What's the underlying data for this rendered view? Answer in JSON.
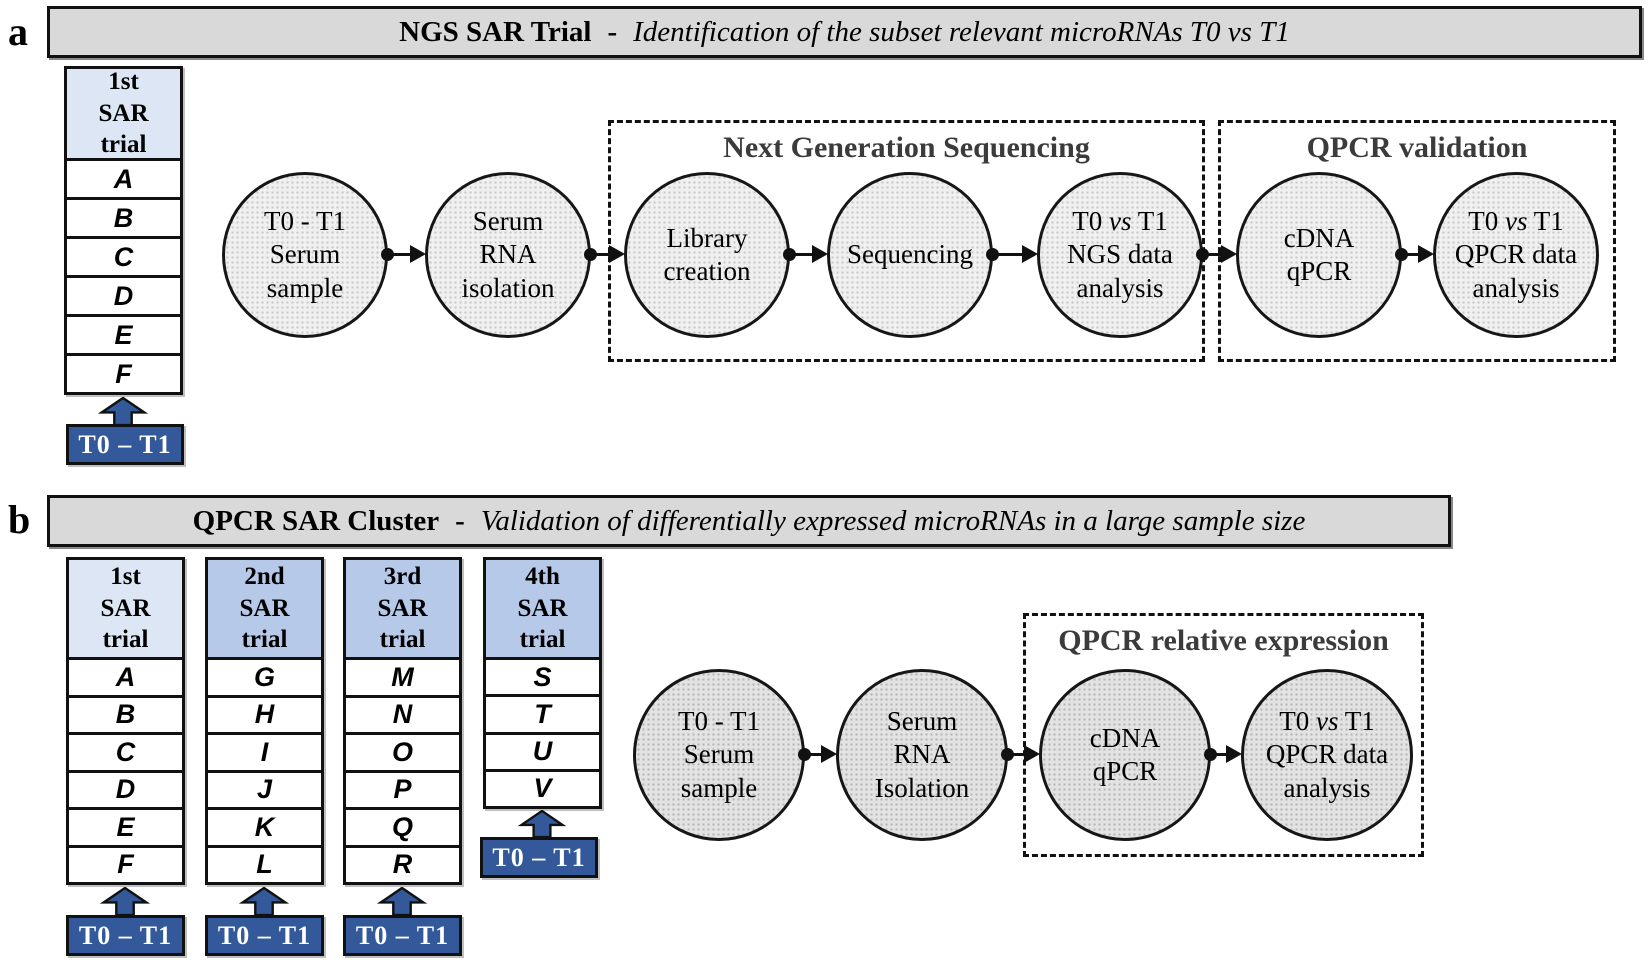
{
  "colors": {
    "bar_fill": "#d9d9d9",
    "trial1_header_fill": "#dce6f4",
    "trial_header_fill": "#b6c9e8",
    "t0t1_blue": "#33599b",
    "group_title_color": "#3b3b3b"
  },
  "panel_a": {
    "label": "a",
    "bar": {
      "title_bold": "NGS SAR Trial",
      "separator": "-",
      "title_italic": "Identification of the subset relevant microRNAs T0 vs T1"
    },
    "trial_column": {
      "header_lines": [
        "1st",
        "SAR",
        "trial"
      ],
      "rows": [
        "A",
        "B",
        "C",
        "D",
        "E",
        "F"
      ],
      "arrow_label": "T0 – T1"
    },
    "flow": [
      {
        "lines": [
          "T0 - T1",
          "Serum",
          "sample"
        ]
      },
      {
        "lines": [
          "Serum",
          "RNA",
          "isolation"
        ]
      },
      {
        "lines": [
          "Library",
          "creation"
        ]
      },
      {
        "lines": [
          "Sequencing"
        ]
      },
      {
        "lines": [
          "T0 *vs* T1",
          "NGS data",
          "analysis"
        ]
      },
      {
        "lines": [
          "cDNA",
          "qPCR"
        ]
      },
      {
        "lines": [
          "T0 *vs* T1",
          "QPCR data",
          "analysis"
        ]
      }
    ],
    "groups": [
      {
        "title": "Next Generation Sequencing"
      },
      {
        "title": "QPCR validation"
      }
    ]
  },
  "panel_b": {
    "label": "b",
    "bar": {
      "title_bold": "QPCR SAR Cluster",
      "separator": "-",
      "title_italic": "Validation of differentially expressed microRNAs in a large sample size"
    },
    "trial_columns": [
      {
        "header_lines": [
          "1st",
          "SAR",
          "trial"
        ],
        "rows": [
          "A",
          "B",
          "C",
          "D",
          "E",
          "F"
        ],
        "arrow_label": "T0 – T1"
      },
      {
        "header_lines": [
          "2nd",
          "SAR",
          "trial"
        ],
        "rows": [
          "G",
          "H",
          "I",
          "J",
          "K",
          "L"
        ],
        "arrow_label": "T0 – T1"
      },
      {
        "header_lines": [
          "3rd",
          "SAR",
          "trial"
        ],
        "rows": [
          "M",
          "N",
          "O",
          "P",
          "Q",
          "R"
        ],
        "arrow_label": "T0 – T1"
      },
      {
        "header_lines": [
          "4th",
          "SAR",
          "trial"
        ],
        "rows": [
          "S",
          "T",
          "U",
          "V"
        ],
        "arrow_label": "T0 – T1"
      }
    ],
    "flow": [
      {
        "lines": [
          "T0 - T1",
          "Serum",
          "sample"
        ]
      },
      {
        "lines": [
          "Serum",
          "RNA",
          "Isolation"
        ]
      },
      {
        "lines": [
          "cDNA",
          "qPCR"
        ]
      },
      {
        "lines": [
          "T0 *vs* T1",
          "QPCR data",
          "analysis"
        ]
      }
    ],
    "groups": [
      {
        "title": "QPCR relative expression"
      }
    ]
  }
}
